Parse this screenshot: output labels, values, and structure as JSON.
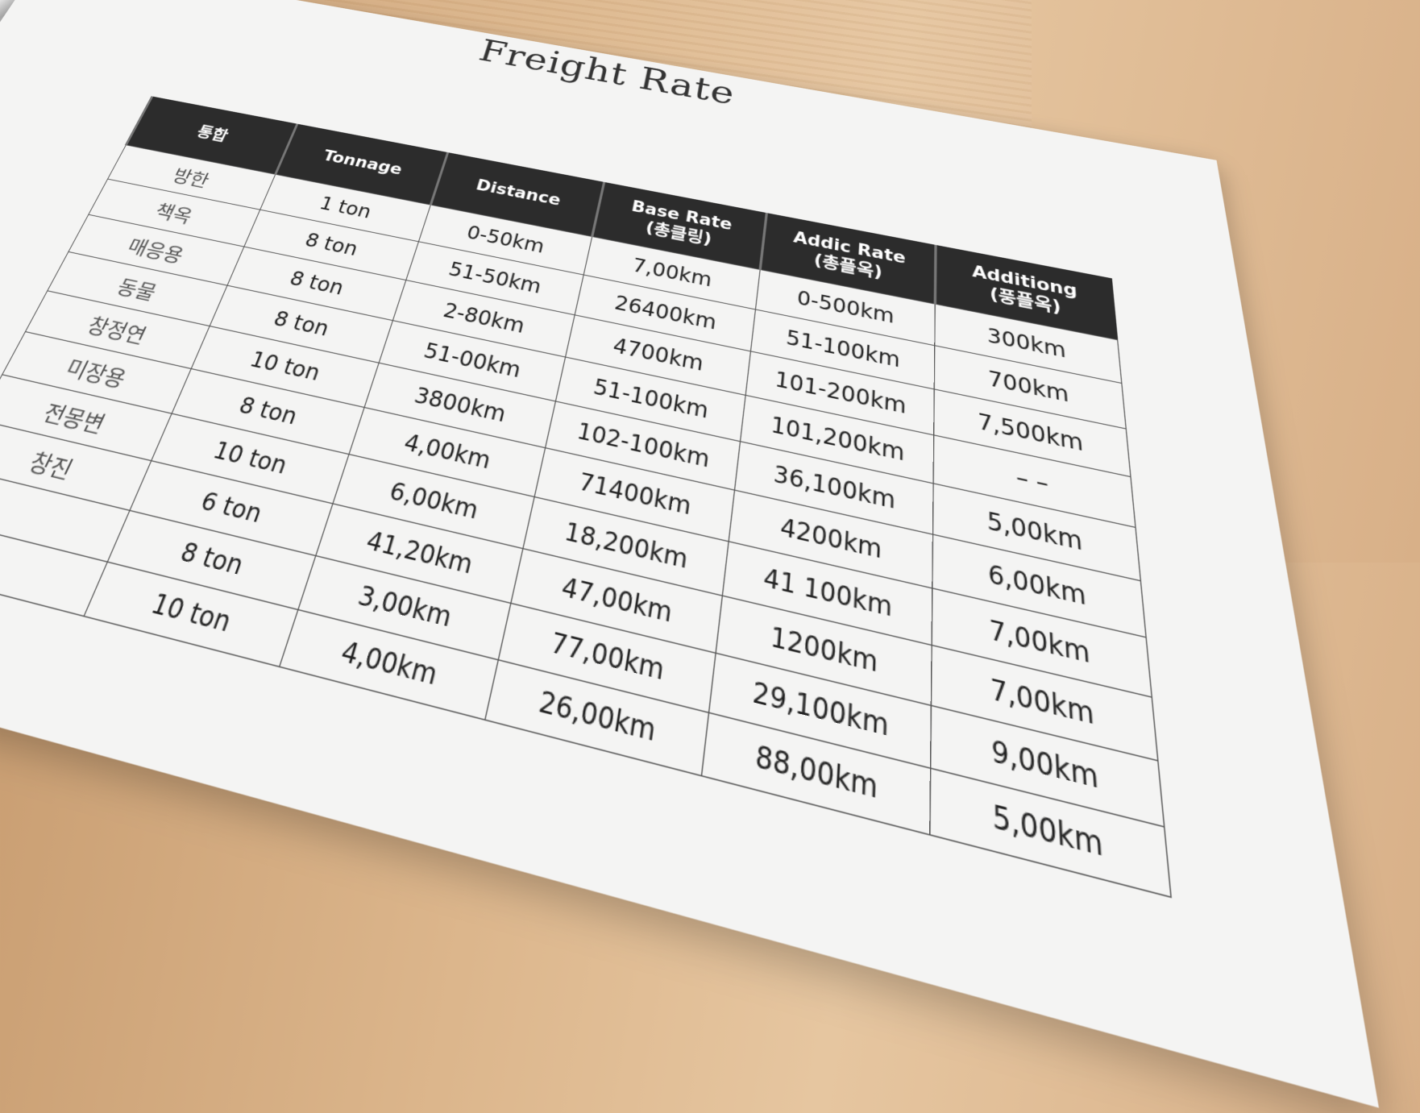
{
  "document": {
    "title": "Freight Rate",
    "headers": [
      "통합",
      "Tonnage",
      "Distance",
      "Base Rate\n(총클링)",
      "Addic Rate\n(총플옥)",
      "Additiong\n(풍플옥)"
    ],
    "rows": [
      [
        "방한",
        "1 ton",
        "0-50km",
        "7,00km",
        "0-500km",
        "300km"
      ],
      [
        "책옥",
        "8 ton",
        "51-50km",
        "26400km",
        "51-100km",
        "700km"
      ],
      [
        "매응용",
        "8 ton",
        "2-80km",
        "4700km",
        "101-200km",
        "7,500km"
      ],
      [
        "동물",
        "8 ton",
        "51-00km",
        "51-100km",
        "101,200km",
        "– –"
      ],
      [
        "창정연",
        "10 ton",
        "3800km",
        "102-100km",
        "36,100km",
        "5,00km"
      ],
      [
        "미장용",
        "8 ton",
        "4,00km",
        "71400km",
        "4200km",
        "6,00km"
      ],
      [
        "전몽변",
        "10 ton",
        "6,00km",
        "18,200km",
        "41 100km",
        "7,00km"
      ],
      [
        "창진",
        "6 ton",
        "41,20km",
        "47,00km",
        "1200km",
        "7,00km"
      ],
      [
        "",
        "8 ton",
        "3,00km",
        "77,00km",
        "29,100km",
        "9,00km"
      ],
      [
        "",
        "10 ton",
        "4,00km",
        "26,00km",
        "88,00km",
        "5,00km"
      ]
    ]
  },
  "colors": {
    "header_bg": "#2c2c2c",
    "paper": "#f4f4f3",
    "table_wood": "#dcb68c"
  }
}
